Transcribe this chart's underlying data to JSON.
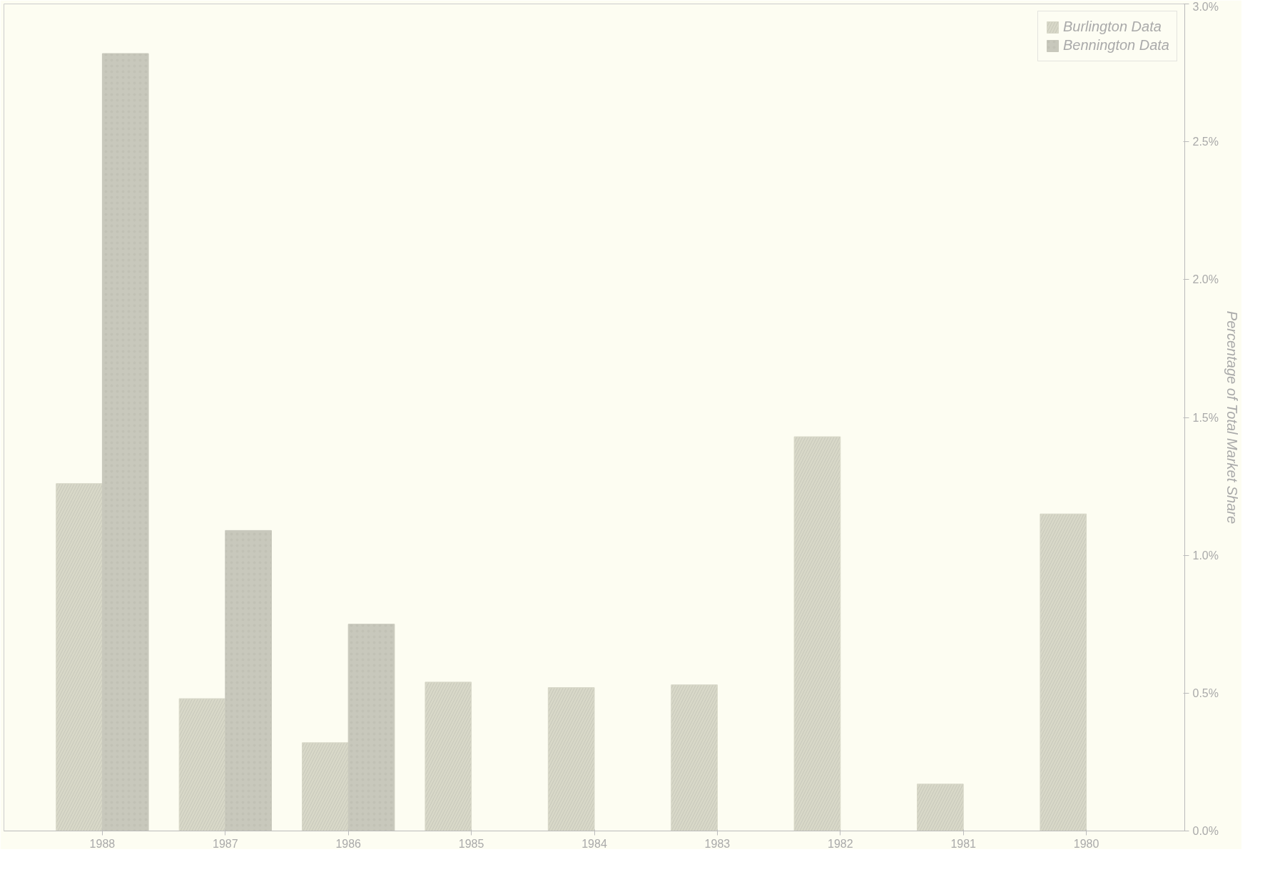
{
  "chart_data": {
    "type": "bar",
    "ylabel": "Percentage of Total Market Share",
    "categories": [
      "1988",
      "1987",
      "1986",
      "1985",
      "1984",
      "1983",
      "1982",
      "1981",
      "1980"
    ],
    "series": [
      {
        "name": "Burlington Data",
        "color": "#d8d8c8",
        "values": [
          1.26,
          0.48,
          0.32,
          0.54,
          0.52,
          0.53,
          1.43,
          0.17,
          1.15
        ]
      },
      {
        "name": "Bennington Data",
        "color": "#c8c8bc",
        "values": [
          2.82,
          1.09,
          0.75,
          null,
          null,
          null,
          null,
          null,
          null
        ]
      }
    ],
    "ylim": [
      0,
      3
    ],
    "yticks": [
      {
        "value": 0,
        "label": "0.0%"
      },
      {
        "value": 0.5,
        "label": "0.5%"
      },
      {
        "value": 1,
        "label": "1.0%"
      },
      {
        "value": 1.5,
        "label": "1.5%"
      },
      {
        "value": 2,
        "label": "2.0%"
      },
      {
        "value": 2.5,
        "label": "2.5%"
      },
      {
        "value": 3,
        "label": "3.0%"
      }
    ],
    "grid": false,
    "legend": "top right"
  }
}
